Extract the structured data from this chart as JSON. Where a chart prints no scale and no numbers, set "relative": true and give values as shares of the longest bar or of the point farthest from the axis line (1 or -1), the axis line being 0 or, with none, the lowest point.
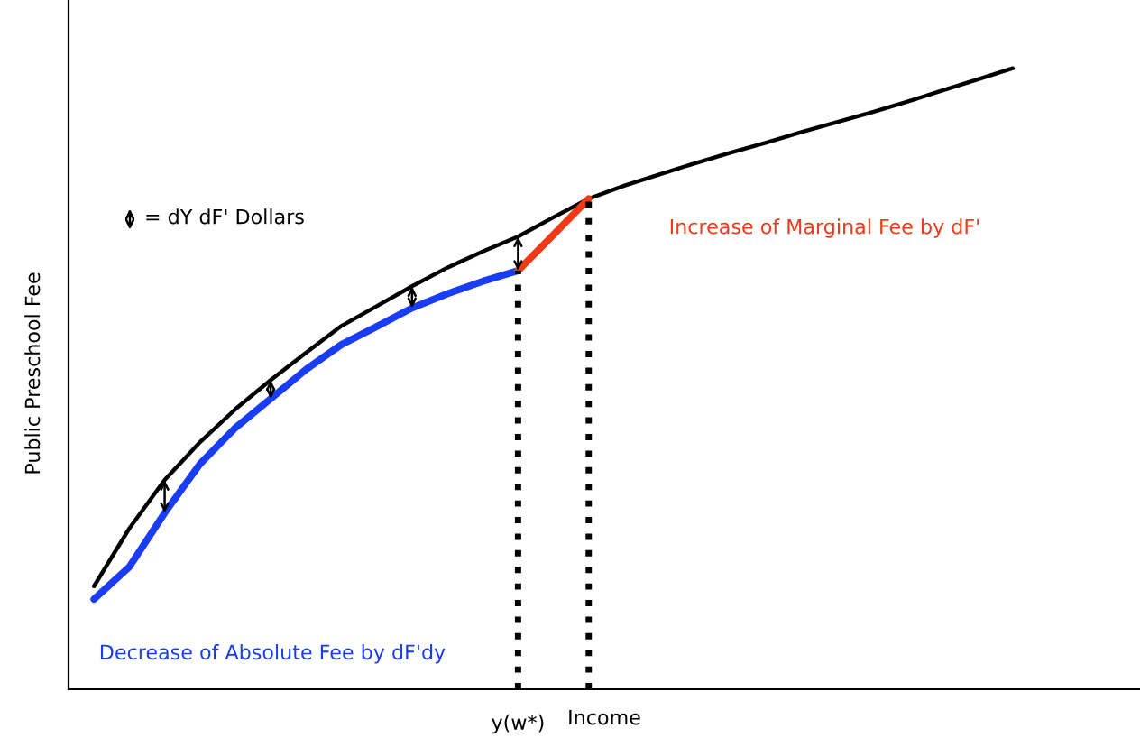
{
  "chart_data": {
    "type": "line",
    "relative": true,
    "xlabel": "Income",
    "ylabel": "Public Preschool Fee",
    "categories": [
      null,
      null,
      null,
      null,
      null,
      null,
      null,
      null,
      null,
      null,
      null,
      null,
      null,
      null,
      null,
      null,
      null,
      null,
      null,
      null,
      null,
      null,
      null,
      null,
      null,
      null,
      null
    ],
    "series": [
      {
        "color": "#000000",
        "values": [
          0.166,
          0.259,
          0.337,
          0.398,
          0.451,
          0.498,
          0.542,
          0.585,
          0.617,
          0.649,
          0.679,
          0.705,
          0.729,
          0.76,
          0.79,
          0.811,
          0.829,
          0.847,
          0.864,
          0.88,
          0.897,
          0.913,
          0.929,
          0.946,
          0.964,
          0.982,
          1.0
        ]
      },
      {
        "name": "Decrease of Absolute Fee by dF'dy",
        "color": "#1a3cf5",
        "values": [
          0.145,
          0.197,
          0.284,
          0.363,
          0.421,
          0.468,
          0.515,
          0.555,
          0.584,
          0.614,
          0.637,
          0.657,
          0.674,
          null,
          null,
          null,
          null,
          null,
          null,
          null,
          null,
          null,
          null,
          null,
          null,
          null,
          null
        ]
      },
      {
        "name": "Increase of Marginal Fee by dF'",
        "color": "#f03a17",
        "values": [
          null,
          null,
          null,
          null,
          null,
          null,
          null,
          null,
          null,
          null,
          null,
          null,
          0.674,
          0.732,
          0.79,
          null,
          null,
          null,
          null,
          null,
          null,
          null,
          null,
          null,
          null,
          null,
          null
        ]
      }
    ],
    "annotations": [
      "= dY dF' Dollars",
      "y(w*)"
    ]
  }
}
